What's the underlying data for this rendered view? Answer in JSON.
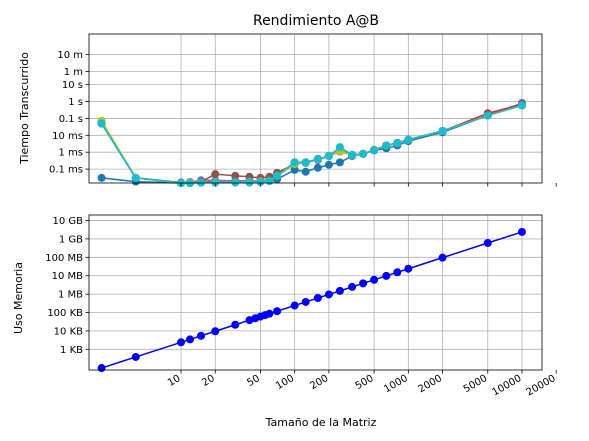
{
  "chart_data": [
    {
      "type": "line",
      "title": "Rendimiento A@B",
      "xlabel": "",
      "ylabel": "Tiempo Transcurrido",
      "xscale": "log",
      "yscale": "log",
      "xlim": [
        1.55,
        15000
      ],
      "ylim": [
        1.5e-05,
        10000
      ],
      "grid": true,
      "y_ticks": [
        {
          "value": 0.0001,
          "label": "0.1 ms"
        },
        {
          "value": 0.001,
          "label": "1 ms"
        },
        {
          "value": 0.01,
          "label": "10 ms"
        },
        {
          "value": 0.1,
          "label": "0.1 s"
        },
        {
          "value": 1,
          "label": "1 s"
        },
        {
          "value": 10,
          "label": "10 s"
        },
        {
          "value": 60,
          "label": "1 m"
        },
        {
          "value": 600,
          "label": "10 m"
        }
      ],
      "x_ticks": [
        10,
        20,
        50,
        100,
        200,
        500,
        1000,
        2000,
        5000,
        10000,
        20000
      ],
      "series": [
        {
          "color": "#1f77b4",
          "x": [
            2,
            4,
            10,
            12,
            20,
            30,
            40,
            50,
            60,
            70,
            100,
            125,
            160,
            200,
            250,
            320,
            400,
            500,
            640,
            800,
            1000,
            2000,
            5000,
            10000
          ],
          "y": [
            3e-05,
            1.8e-05,
            1.5e-05,
            1.5e-05,
            1.6e-05,
            1.6e-05,
            1.6e-05,
            1.8e-05,
            2e-05,
            2.5e-05,
            9e-05,
            7e-05,
            0.00012,
            0.00018,
            0.00025,
            0.0006,
            0.0008,
            0.0013,
            0.0017,
            0.0025,
            0.0045,
            0.015,
            0.15,
            0.8
          ]
        },
        {
          "color": "#ff7f0e",
          "x": [
            2,
            4,
            10,
            12,
            15,
            20,
            30,
            40,
            50,
            60,
            70,
            100,
            125,
            160,
            200,
            250,
            320,
            400,
            500,
            640,
            800,
            1000,
            2000,
            5000,
            10000
          ],
          "y": [
            0.07,
            3e-05,
            1.5e-05,
            1.5e-05,
            1.6e-05,
            1.8e-05,
            1.8e-05,
            1.8e-05,
            1.9e-05,
            2e-05,
            4e-05,
            0.00025,
            0.00025,
            0.00035,
            0.0006,
            0.0015,
            0.0007,
            0.0008,
            0.0014,
            0.0025,
            0.0035,
            0.0055,
            0.018,
            0.15,
            0.6
          ]
        },
        {
          "color": "#2ca02c",
          "x": [
            2,
            4,
            10,
            12,
            15,
            20,
            30,
            40,
            50,
            60,
            70,
            100,
            125,
            160,
            200,
            250,
            320,
            400,
            500,
            640,
            800,
            1000,
            2000,
            5000,
            10000
          ],
          "y": [
            0.05,
            3e-05,
            1.5e-05,
            1.6e-05,
            1.6e-05,
            1.7e-05,
            1.7e-05,
            1.7e-05,
            1.8e-05,
            2e-05,
            4e-05,
            0.00025,
            0.00023,
            0.0004,
            0.0006,
            0.0011,
            0.0007,
            0.0008,
            0.0013,
            0.0025,
            0.0035,
            0.0055,
            0.018,
            0.15,
            0.6
          ]
        },
        {
          "color": "#d62728",
          "x": [
            2,
            4,
            10,
            12,
            15,
            20,
            30,
            40,
            50,
            60,
            70,
            100,
            125,
            160,
            200,
            250,
            320,
            400,
            500,
            640,
            800,
            1000,
            2000,
            5000,
            10000
          ],
          "y": [
            0.05,
            3e-05,
            1.5e-05,
            1.6e-05,
            1.6e-05,
            2e-05,
            2e-05,
            2e-05,
            2e-05,
            2.2e-05,
            4e-05,
            0.0002,
            0.00025,
            0.0004,
            0.0006,
            0.0011,
            0.0007,
            0.0008,
            0.0013,
            0.0025,
            0.0035,
            0.0055,
            0.018,
            0.2,
            0.7
          ]
        },
        {
          "color": "#9467bd",
          "x": [
            2,
            4,
            10,
            12,
            15,
            20,
            30,
            40,
            50,
            60,
            70,
            100,
            125,
            160,
            200,
            250,
            320,
            400,
            500,
            640,
            800,
            1000,
            2000,
            5000,
            10000
          ],
          "y": [
            0.05,
            3e-05,
            1.6e-05,
            1.7e-05,
            2.2e-05,
            2.2e-05,
            2e-05,
            2e-05,
            2e-05,
            2.3e-05,
            4e-05,
            0.00025,
            0.00025,
            0.00035,
            0.0006,
            0.0012,
            0.0007,
            0.0008,
            0.0013,
            0.0025,
            0.0035,
            0.0055,
            0.018,
            0.15,
            0.6
          ]
        },
        {
          "color": "#8c564b",
          "x": [
            2,
            4,
            10,
            12,
            15,
            20,
            30,
            40,
            50,
            60,
            70,
            100,
            125,
            160,
            200,
            250,
            320,
            400,
            500,
            640,
            800,
            1000,
            2000,
            5000,
            10000
          ],
          "y": [
            0.05,
            3e-05,
            1.6e-05,
            1.7e-05,
            1.8e-05,
            5e-05,
            4e-05,
            3.5e-05,
            3e-05,
            3.5e-05,
            6e-05,
            0.0002,
            0.00025,
            0.0004,
            0.0006,
            0.0011,
            0.0007,
            0.0008,
            0.0013,
            0.0025,
            0.0035,
            0.0055,
            0.018,
            0.15,
            0.6
          ]
        },
        {
          "color": "#e377c2",
          "x": [
            2,
            4,
            10,
            12,
            15,
            20,
            30,
            40,
            50,
            60,
            70,
            100,
            125,
            160,
            200,
            250,
            320,
            400,
            500,
            640,
            800,
            1000,
            2000,
            5000,
            10000
          ],
          "y": [
            0.05,
            3e-05,
            1.5e-05,
            1.6e-05,
            1.6e-05,
            1.7e-05,
            1.7e-05,
            1.8e-05,
            1.9e-05,
            2e-05,
            4e-05,
            0.0002,
            0.00025,
            0.0004,
            0.0006,
            0.0011,
            0.0007,
            0.0008,
            0.0013,
            0.0025,
            0.0035,
            0.0055,
            0.018,
            0.15,
            0.6
          ]
        },
        {
          "color": "#7f7f7f",
          "x": [
            2,
            4,
            10,
            12,
            15,
            20,
            30,
            40,
            50,
            60,
            70,
            100,
            125,
            160,
            200,
            250,
            320,
            400,
            500,
            640,
            800,
            1000,
            2000,
            5000,
            10000
          ],
          "y": [
            0.05,
            3e-05,
            1.5e-05,
            1.6e-05,
            1.6e-05,
            1.7e-05,
            1.7e-05,
            1.7e-05,
            1.8e-05,
            2e-05,
            4e-05,
            0.0002,
            0.00025,
            0.0004,
            0.0006,
            0.0011,
            0.0007,
            0.0008,
            0.0013,
            0.0025,
            0.0035,
            0.0055,
            0.018,
            0.15,
            0.6
          ]
        },
        {
          "color": "#bcbd22",
          "x": [
            2,
            4,
            10,
            12,
            15,
            20,
            30,
            40,
            50,
            60,
            70,
            100,
            125,
            160,
            200,
            250,
            320,
            400,
            500,
            640,
            800,
            1000,
            2000,
            5000,
            10000
          ],
          "y": [
            0.07,
            3e-05,
            1.5e-05,
            1.6e-05,
            1.6e-05,
            1.7e-05,
            1.7e-05,
            1.7e-05,
            1.8e-05,
            2e-05,
            4e-05,
            0.0002,
            0.00025,
            0.0004,
            0.0006,
            0.0011,
            0.0007,
            0.0008,
            0.0013,
            0.0025,
            0.0035,
            0.0055,
            0.018,
            0.15,
            0.6
          ]
        },
        {
          "color": "#17becf",
          "x": [
            2,
            4,
            10,
            12,
            15,
            20,
            30,
            40,
            50,
            60,
            70,
            100,
            125,
            160,
            200,
            250,
            320,
            400,
            500,
            640,
            800,
            1000,
            2000,
            5000,
            10000
          ],
          "y": [
            0.05,
            3e-05,
            1.5e-05,
            1.5e-05,
            1.6e-05,
            1.6e-05,
            1.7e-05,
            1.7e-05,
            1.7e-05,
            2e-05,
            4e-05,
            0.00025,
            0.00025,
            0.0004,
            0.0006,
            0.002,
            0.0007,
            0.0008,
            0.0013,
            0.0025,
            0.0035,
            0.0055,
            0.018,
            0.15,
            0.6
          ]
        }
      ]
    },
    {
      "type": "line",
      "title": "",
      "xlabel": "Tamaño de la Matriz",
      "ylabel": "Uso Memoria",
      "xscale": "log",
      "yscale": "log",
      "xlim": [
        1.55,
        15000
      ],
      "ylim": [
        75,
        20000000000
      ],
      "grid": true,
      "y_ticks": [
        {
          "value": 1000,
          "label": "1 KB"
        },
        {
          "value": 10000,
          "label": "10 KB"
        },
        {
          "value": 100000,
          "label": "100 KB"
        },
        {
          "value": 1000000,
          "label": "1 MB"
        },
        {
          "value": 10000000,
          "label": "10 MB"
        },
        {
          "value": 100000000,
          "label": "100 MB"
        },
        {
          "value": 1000000000,
          "label": "1 GB"
        },
        {
          "value": 10000000000,
          "label": "10 GB"
        }
      ],
      "x_ticks": [
        10,
        20,
        50,
        100,
        200,
        500,
        1000,
        2000,
        5000,
        10000,
        20000
      ],
      "series": [
        {
          "color": "#0000ff",
          "x": [
            2,
            4,
            10,
            12,
            15,
            20,
            30,
            40,
            45,
            50,
            55,
            60,
            70,
            100,
            125,
            160,
            200,
            250,
            320,
            400,
            500,
            640,
            800,
            1000,
            2000,
            5000,
            10000
          ],
          "y": [
            96,
            384,
            2400,
            3456,
            5400,
            9600,
            21600,
            38400,
            48600,
            60000,
            72600,
            86400,
            117600,
            240000,
            375000,
            614400,
            960000,
            1500000,
            2457600,
            3840000,
            6000000,
            9830400,
            15360000,
            24000000,
            96000000,
            600000000,
            2400000000
          ]
        }
      ]
    }
  ]
}
